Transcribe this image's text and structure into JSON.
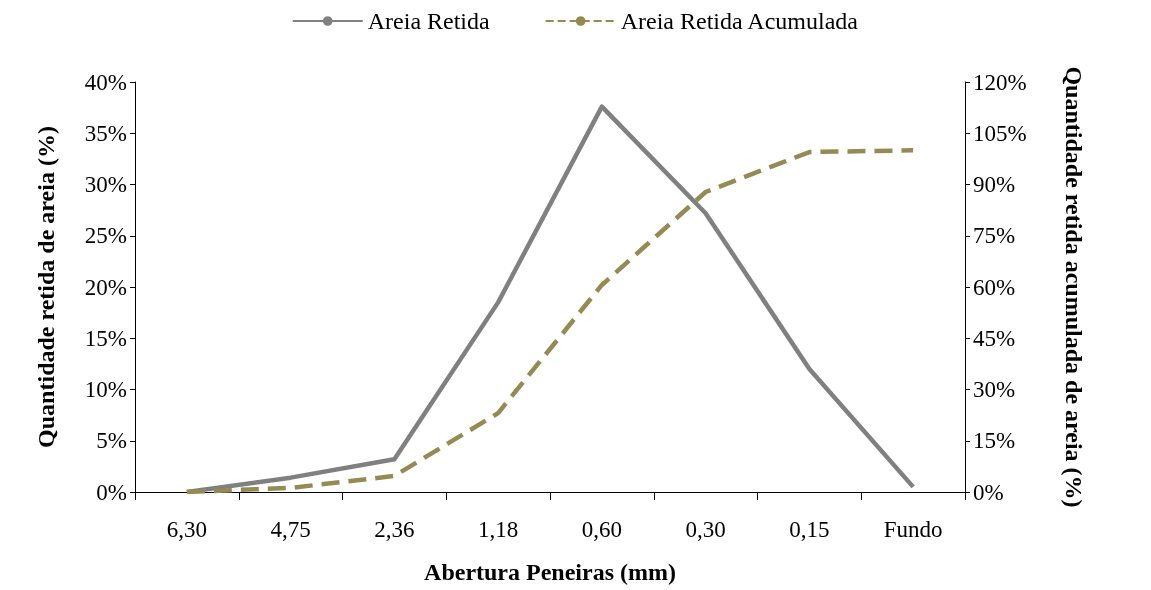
{
  "chart_data": {
    "type": "line",
    "xlabel": "Abertura Peneiras (mm)",
    "ylabel": "Quantidade retida de areia (%)",
    "y2label": "Quantidade retida acumulada de areia (%)",
    "categories": [
      "6,30",
      "4,75",
      "2,36",
      "1,18",
      "0,60",
      "0,30",
      "0,15",
      "Fundo"
    ],
    "series": [
      {
        "name": "Areia Retida",
        "color": "#808080",
        "line_style": "solid",
        "values": [
          0,
          1.4,
          3.2,
          18.5,
          37.6,
          27.2,
          12.0,
          0.5
        ]
      },
      {
        "name": "Areia Retida Acumulada",
        "color": "#948a54",
        "line_style": "dashed",
        "axis": "y2",
        "values": [
          0,
          1.2,
          4.7,
          23.1,
          60.6,
          87.8,
          99.5,
          100
        ]
      }
    ],
    "ylim": [
      0,
      40
    ],
    "yticks": [
      {
        "value": 0,
        "label": "0%"
      },
      {
        "value": 5,
        "label": "5%"
      },
      {
        "value": 10,
        "label": "10%"
      },
      {
        "value": 15,
        "label": "15%"
      },
      {
        "value": 20,
        "label": "20%"
      },
      {
        "value": 25,
        "label": "25%"
      },
      {
        "value": 30,
        "label": "30%"
      },
      {
        "value": 35,
        "label": "35%"
      },
      {
        "value": 40,
        "label": "40%"
      }
    ],
    "y2lim": [
      0,
      120
    ],
    "y2ticks": [
      {
        "value": 0,
        "label": "0%"
      },
      {
        "value": 15,
        "label": "15%"
      },
      {
        "value": 30,
        "label": "30%"
      },
      {
        "value": 45,
        "label": "45%"
      },
      {
        "value": 60,
        "label": "60%"
      },
      {
        "value": 75,
        "label": "75%"
      },
      {
        "value": 90,
        "label": "90%"
      },
      {
        "value": 105,
        "label": "105%"
      },
      {
        "value": 120,
        "label": "120%"
      }
    ],
    "grid": false,
    "legend": "top",
    "marker": "none"
  }
}
